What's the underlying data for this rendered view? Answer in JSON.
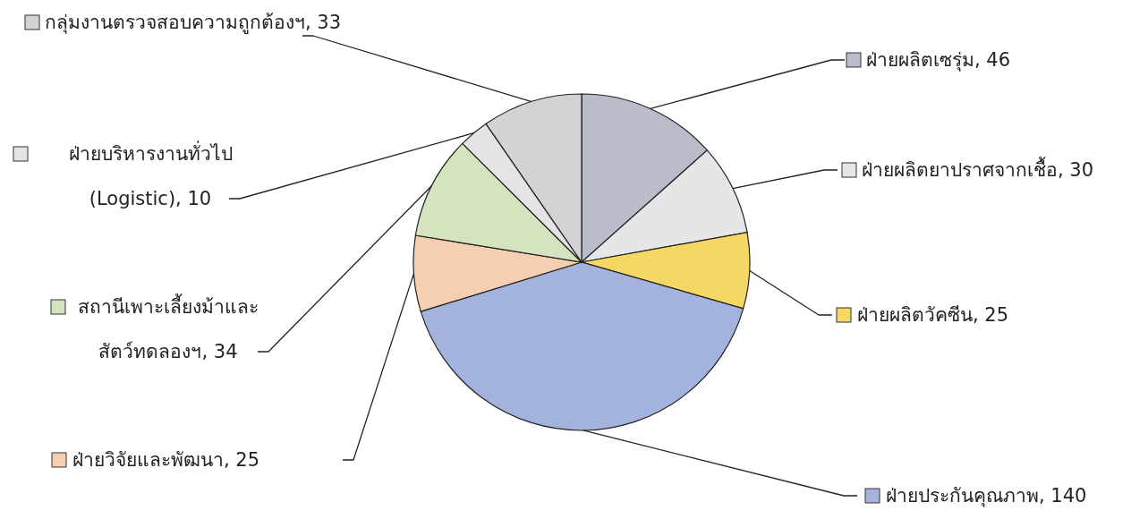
{
  "chart_data": {
    "type": "pie",
    "categories": [
      "ฝ่ายผลิตเซรุ่ม",
      "ฝ่ายผลิตยาปราศจากเชื้อ",
      "ฝ่ายผลิตวัคซีน",
      "ฝ่ายประกันคุณภาพ",
      "ฝ่ายวิจัยและพัฒนา",
      "สถานีเพาะเลี้ยงม้าและ\nสัตว์ทดลองฯ",
      "ฝ่ายบริหารงานทั่วไป\n(Logistic)",
      "กลุ่มงานตรวจสอบความถูกต้องฯ"
    ],
    "values": [
      46,
      30,
      25,
      140,
      25,
      34,
      10,
      33
    ],
    "colors": [
      "#b9bccb",
      "#e6e6e8",
      "#f5d766",
      "#a4b2de",
      "#f4cfb2",
      "#d5e4bf",
      "#e4e4e6",
      "#d4d2d4"
    ],
    "value_labels": [
      ", 46",
      ", 30",
      ", 25",
      ", 140",
      ", 25",
      ", 34",
      ", 10",
      ", 33"
    ],
    "legend": "top left"
  }
}
